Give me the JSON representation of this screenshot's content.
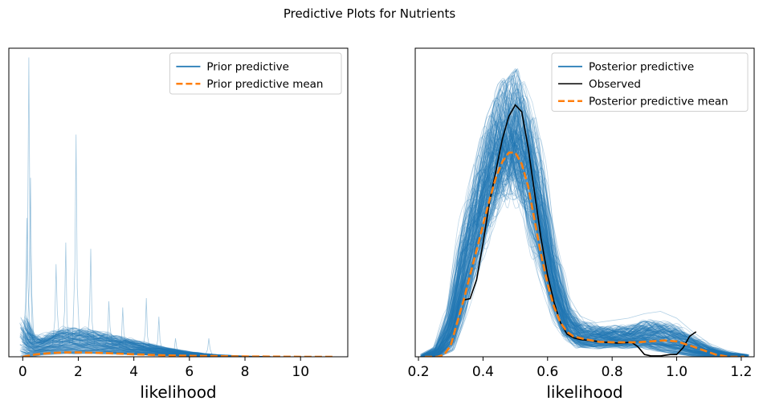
{
  "figure": {
    "title": "Predictive Plots for Nutrients"
  },
  "colors": {
    "samples": "#1f77b4",
    "mean": "#ff7f0e",
    "observed": "#000000"
  },
  "chart_data": [
    {
      "type": "line",
      "title": "",
      "xlabel": "likelihood",
      "ylabel": "",
      "xlim": [
        -0.5,
        11.7
      ],
      "ylim": [
        0,
        1.0
      ],
      "xticks": [
        0,
        2,
        4,
        6,
        8,
        10
      ],
      "xtick_labels": [
        "0",
        "2",
        "4",
        "6",
        "8",
        "10"
      ],
      "y_axis_shown": false,
      "grid": false,
      "legend": "top-right",
      "legend_entries": [
        "Prior predictive",
        "Prior predictive mean"
      ],
      "series": [
        {
          "name": "Prior predictive",
          "kind": "sample_band",
          "x": [
            0.05,
            0.3,
            0.6,
            1.0,
            1.5,
            2.0,
            2.5,
            3.0,
            3.5,
            4.0,
            4.5,
            5.0,
            5.5,
            6.0,
            6.5,
            7.0,
            7.5,
            8.0,
            9.0,
            10.0,
            11.0
          ],
          "lower": [
            0.0,
            0.0,
            0.005,
            0.008,
            0.01,
            0.01,
            0.01,
            0.01,
            0.008,
            0.006,
            0.005,
            0.004,
            0.003,
            0.002,
            0.001,
            0.0,
            0.0,
            0.0,
            0.0,
            0.0,
            0.0
          ],
          "upper": [
            0.12,
            0.07,
            0.06,
            0.075,
            0.085,
            0.085,
            0.08,
            0.07,
            0.06,
            0.05,
            0.04,
            0.03,
            0.022,
            0.015,
            0.01,
            0.006,
            0.004,
            0.002,
            0.0,
            0.0,
            0.0
          ],
          "spikes": [
            {
              "x": 0.22,
              "y": 0.97
            },
            {
              "x": 0.28,
              "y": 0.58
            },
            {
              "x": 0.15,
              "y": 0.45
            },
            {
              "x": 1.92,
              "y": 0.72
            },
            {
              "x": 1.55,
              "y": 0.37
            },
            {
              "x": 2.45,
              "y": 0.35
            },
            {
              "x": 1.2,
              "y": 0.3
            },
            {
              "x": 3.1,
              "y": 0.18
            },
            {
              "x": 3.6,
              "y": 0.16
            },
            {
              "x": 4.45,
              "y": 0.19
            },
            {
              "x": 4.9,
              "y": 0.13
            },
            {
              "x": 5.5,
              "y": 0.06
            },
            {
              "x": 6.7,
              "y": 0.06
            }
          ]
        },
        {
          "name": "Prior predictive mean",
          "kind": "mean",
          "x": [
            0.0,
            0.5,
            1.0,
            1.5,
            2.0,
            2.5,
            3.0,
            3.5,
            4.0,
            5.0,
            6.0,
            7.0,
            8.0,
            9.0,
            10.0,
            11.2
          ],
          "y": [
            0.0,
            0.008,
            0.012,
            0.014,
            0.014,
            0.013,
            0.012,
            0.01,
            0.008,
            0.005,
            0.003,
            0.002,
            0.001,
            0.0005,
            0.0,
            0.0
          ]
        }
      ]
    },
    {
      "type": "line",
      "title": "",
      "xlabel": "likelihood",
      "ylabel": "",
      "xlim": [
        0.19,
        1.24
      ],
      "ylim": [
        0,
        6.8
      ],
      "xticks": [
        0.2,
        0.4,
        0.6,
        0.8,
        1.0,
        1.2
      ],
      "xtick_labels": [
        "0.2",
        "0.4",
        "0.6",
        "0.8",
        "1.0",
        "1.2"
      ],
      "y_axis_shown": false,
      "grid": false,
      "legend": "top-right",
      "legend_entries": [
        "Posterior predictive",
        "Observed",
        "Posterior predictive mean"
      ],
      "series": [
        {
          "name": "Posterior predictive",
          "kind": "sample_band",
          "x": [
            0.22,
            0.26,
            0.3,
            0.34,
            0.38,
            0.42,
            0.46,
            0.5,
            0.54,
            0.58,
            0.62,
            0.66,
            0.7,
            0.75,
            0.8,
            0.85,
            0.9,
            0.95,
            1.0,
            1.05,
            1.1,
            1.15,
            1.21
          ],
          "lower": [
            0.0,
            0.0,
            0.1,
            0.9,
            2.0,
            3.2,
            3.8,
            4.0,
            3.3,
            2.0,
            1.0,
            0.4,
            0.2,
            0.2,
            0.2,
            0.2,
            0.2,
            0.1,
            0.05,
            0.0,
            0.0,
            0.0,
            0.0
          ],
          "upper": [
            0.05,
            0.2,
            1.0,
            2.7,
            3.7,
            4.8,
            5.4,
            5.6,
            5.0,
            3.8,
            2.2,
            1.0,
            0.7,
            0.6,
            0.6,
            0.6,
            0.7,
            0.7,
            0.6,
            0.4,
            0.2,
            0.1,
            0.05
          ],
          "envelope": [
            0.05,
            0.3,
            1.3,
            3.0,
            4.1,
            5.3,
            6.0,
            6.35,
            5.6,
            4.3,
            2.6,
            1.4,
            0.9,
            0.75,
            0.8,
            0.85,
            0.95,
            1.0,
            0.85,
            0.55,
            0.3,
            0.15,
            0.05
          ]
        },
        {
          "name": "Observed",
          "kind": "observed",
          "x": [
            0.34,
            0.36,
            0.38,
            0.4,
            0.42,
            0.44,
            0.46,
            0.48,
            0.5,
            0.52,
            0.54,
            0.56,
            0.58,
            0.6,
            0.62,
            0.64,
            0.66,
            0.68,
            0.7,
            0.74,
            0.78,
            0.82,
            0.86,
            0.88,
            0.9,
            0.92,
            0.95,
            0.98,
            1.0,
            1.02,
            1.04,
            1.06
          ],
          "y": [
            1.25,
            1.28,
            1.7,
            2.5,
            3.4,
            4.1,
            4.8,
            5.3,
            5.55,
            5.4,
            4.6,
            3.6,
            2.6,
            1.8,
            1.2,
            0.75,
            0.5,
            0.42,
            0.38,
            0.35,
            0.32,
            0.3,
            0.32,
            0.22,
            0.05,
            0.02,
            0.02,
            0.05,
            0.05,
            0.2,
            0.45,
            0.55
          ]
        },
        {
          "name": "Posterior predictive mean",
          "kind": "mean",
          "x": [
            0.22,
            0.26,
            0.28,
            0.3,
            0.32,
            0.34,
            0.36,
            0.38,
            0.4,
            0.42,
            0.44,
            0.46,
            0.48,
            0.5,
            0.52,
            0.54,
            0.56,
            0.58,
            0.6,
            0.62,
            0.64,
            0.66,
            0.68,
            0.72,
            0.76,
            0.8,
            0.84,
            0.88,
            0.92,
            0.96,
            1.0,
            1.04,
            1.08,
            1.12,
            1.16,
            1.21
          ],
          "y": [
            0.0,
            0.0,
            0.05,
            0.25,
            0.75,
            1.25,
            1.8,
            2.35,
            2.9,
            3.45,
            3.95,
            4.3,
            4.5,
            4.5,
            4.25,
            3.75,
            3.0,
            2.25,
            1.6,
            1.1,
            0.75,
            0.55,
            0.45,
            0.38,
            0.33,
            0.32,
            0.32,
            0.32,
            0.34,
            0.36,
            0.34,
            0.25,
            0.15,
            0.05,
            0.0,
            0.0
          ]
        }
      ]
    }
  ]
}
